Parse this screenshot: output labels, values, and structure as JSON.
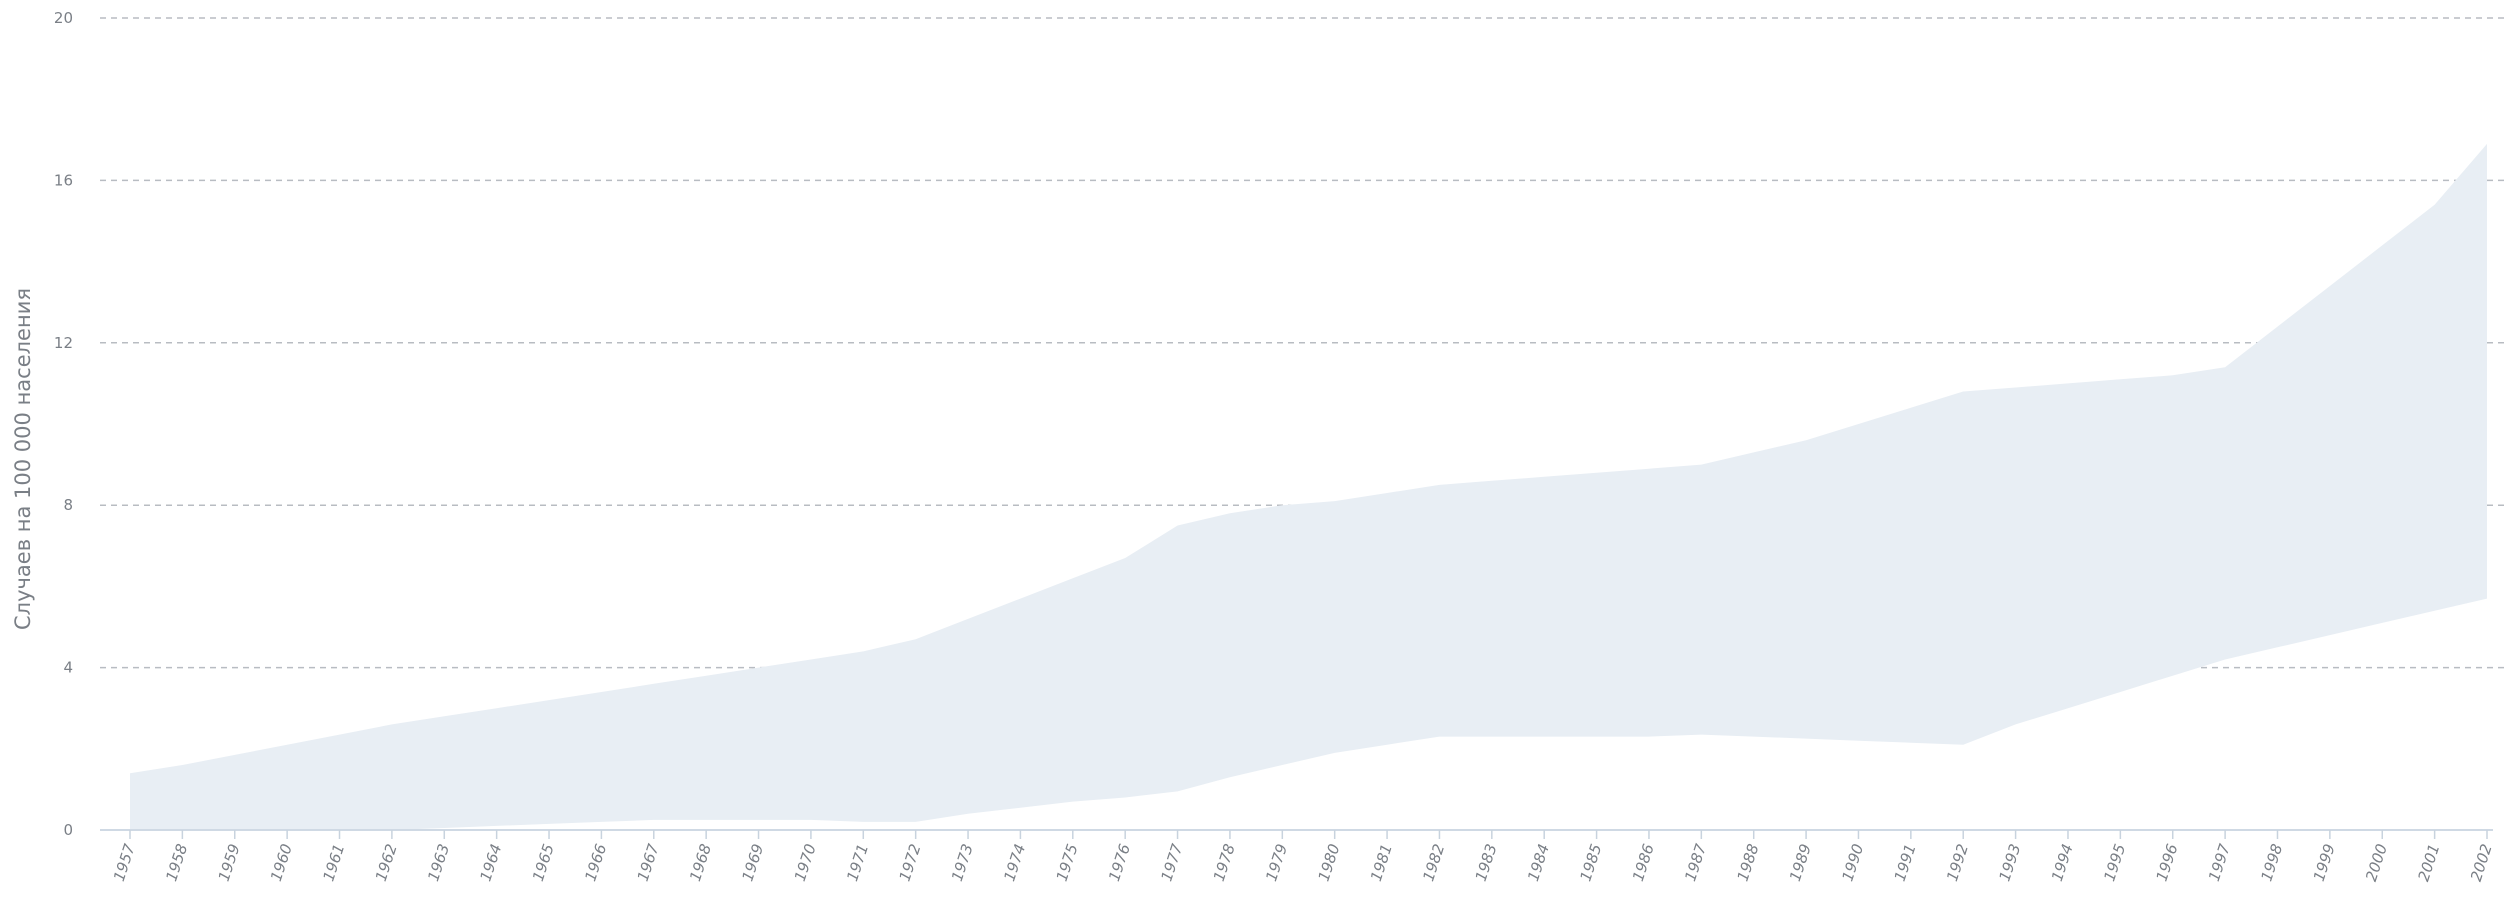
{
  "chart_data": {
    "type": "area",
    "title": "",
    "xlabel": "",
    "ylabel": "Случаев на 100 000 населения",
    "ylim": [
      0,
      20
    ],
    "yticks": [
      0,
      4,
      8,
      12,
      16,
      20
    ],
    "grid": true,
    "fill_color": "#e8eef4",
    "grid_color": "#b8bcc2",
    "text_color": "#7a7f86",
    "years": [
      1957,
      1958,
      1959,
      1960,
      1961,
      1962,
      1963,
      1964,
      1965,
      1966,
      1967,
      1968,
      1969,
      1970,
      1971,
      1972,
      1973,
      1974,
      1975,
      1976,
      1977,
      1978,
      1979,
      1980,
      1981,
      1982,
      1983,
      1984,
      1985,
      1986,
      1987,
      1988,
      1989,
      1990,
      1991,
      1992,
      1993,
      1994,
      1995,
      1996,
      1997,
      1998,
      1999,
      2000,
      2001,
      2002
    ],
    "series": [
      {
        "role": "upper",
        "values": [
          1.4,
          1.6,
          1.85,
          2.1,
          2.35,
          2.6,
          2.8,
          3.0,
          3.2,
          3.4,
          3.6,
          3.8,
          4.0,
          4.2,
          4.4,
          4.7,
          5.2,
          5.7,
          6.2,
          6.7,
          7.5,
          7.8,
          8.0,
          8.1,
          8.3,
          8.5,
          8.6,
          8.7,
          8.8,
          8.9,
          9.0,
          9.3,
          9.6,
          10.0,
          10.4,
          10.8,
          10.9,
          11.0,
          11.1,
          11.2,
          11.4,
          12.4,
          13.4,
          14.4,
          15.4,
          16.9
        ]
      },
      {
        "role": "lower",
        "values": [
          0.0,
          0.0,
          0.0,
          0.0,
          0.0,
          0.0,
          0.05,
          0.1,
          0.15,
          0.2,
          0.25,
          0.25,
          0.25,
          0.25,
          0.2,
          0.2,
          0.4,
          0.55,
          0.7,
          0.8,
          0.95,
          1.3,
          1.6,
          1.9,
          2.1,
          2.3,
          2.3,
          2.3,
          2.3,
          2.3,
          2.35,
          2.3,
          2.25,
          2.2,
          2.15,
          2.1,
          2.6,
          3.0,
          3.4,
          3.8,
          4.2,
          4.5,
          4.8,
          5.1,
          5.4,
          5.7
        ]
      }
    ]
  }
}
